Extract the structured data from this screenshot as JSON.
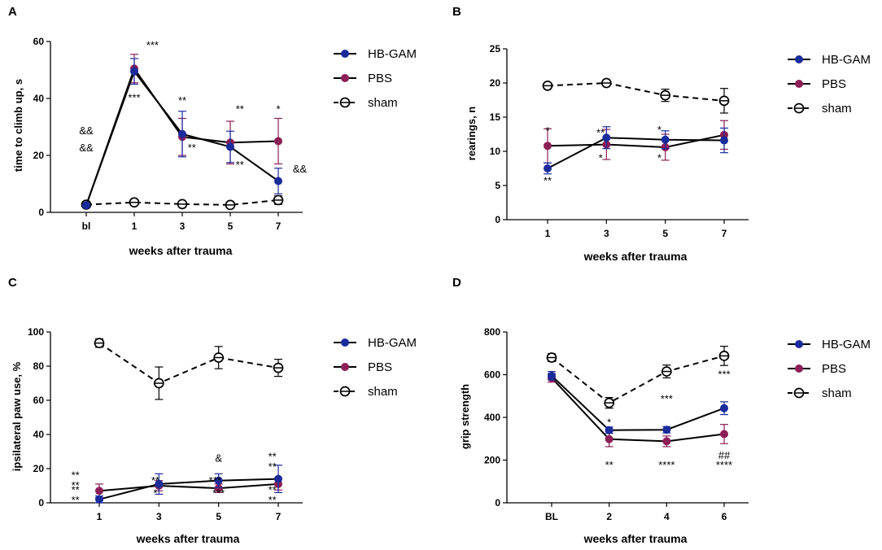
{
  "colors": {
    "hbgam": "#1a2b9c",
    "pbs": "#8b1f57",
    "sham": "#000000"
  },
  "chart_data": [
    {
      "panel": "A",
      "type": "line",
      "ylabel": "time to climb up, s",
      "xlabel": "weeks after trauma",
      "categories": [
        "bl",
        "1",
        "3",
        "5",
        "7"
      ],
      "ylim": [
        0,
        60
      ],
      "yticks": [
        0,
        20,
        40,
        60
      ],
      "legend": [
        "HB-GAM",
        "PBS",
        "sham"
      ],
      "legend_position": "right",
      "series": [
        {
          "name": "HB-GAM",
          "values": [
            2.5,
            49.5,
            27.5,
            23,
            11
          ],
          "errors": [
            0.3,
            4.5,
            8,
            5.5,
            4.5
          ]
        },
        {
          "name": "PBS",
          "values": [
            2.5,
            50.5,
            26.5,
            24.5,
            25
          ],
          "errors": [
            0.3,
            5,
            6.5,
            7.5,
            8
          ]
        },
        {
          "name": "sham",
          "values": [
            2.7,
            3.5,
            2.9,
            2.6,
            4.3
          ],
          "errors": [
            0.2,
            0.5,
            0.3,
            0.3,
            1.5
          ]
        }
      ],
      "annotations": [
        {
          "text": "&&",
          "x": 0,
          "y": 27.5
        },
        {
          "text": "&&",
          "x": 0,
          "y": 21.5
        },
        {
          "text": "***",
          "x": 1.38,
          "y": 57.5
        },
        {
          "text": "***",
          "x": 1,
          "y": 39
        },
        {
          "text": "**",
          "x": 2,
          "y": 38
        },
        {
          "text": "**",
          "x": 2.2,
          "y": 21.5
        },
        {
          "text": "**",
          "x": 3.2,
          "y": 35
        },
        {
          "text": "**",
          "x": 3.2,
          "y": 15.5
        },
        {
          "text": "*",
          "x": 4,
          "y": 35
        },
        {
          "text": "&&",
          "x": 4.45,
          "y": 14
        }
      ]
    },
    {
      "panel": "B",
      "type": "line",
      "ylabel": "rearings, n",
      "xlabel": "weeks after trauma",
      "categories": [
        "1",
        "3",
        "5",
        "7"
      ],
      "ylim": [
        0,
        25
      ],
      "yticks": [
        0,
        5,
        10,
        15,
        20,
        25
      ],
      "legend": [
        "HB-GAM",
        "PBS",
        "sham"
      ],
      "legend_position": "right",
      "series": [
        {
          "name": "HB-GAM",
          "values": [
            7.5,
            12,
            11.7,
            11.6
          ],
          "errors": [
            0.8,
            1.6,
            1.3,
            1.8
          ]
        },
        {
          "name": "PBS",
          "values": [
            10.8,
            11,
            10.6,
            12.4
          ],
          "errors": [
            2.5,
            2.2,
            1.9,
            2.1
          ]
        },
        {
          "name": "sham",
          "values": [
            19.6,
            20,
            18.2,
            17.4
          ],
          "errors": [
            0.2,
            0.2,
            0.9,
            1.8
          ]
        }
      ],
      "annotations": [
        {
          "text": "*",
          "x": 0,
          "y": 12.5
        },
        {
          "text": "**",
          "x": 0,
          "y": 5.2
        },
        {
          "text": "**",
          "x": 0.9,
          "y": 12.2
        },
        {
          "text": "*",
          "x": 0.9,
          "y": 8.5
        },
        {
          "text": "*",
          "x": 1.9,
          "y": 12.6
        },
        {
          "text": "*",
          "x": 1.9,
          "y": 8.5
        }
      ]
    },
    {
      "panel": "C",
      "type": "line",
      "ylabel": "ipsilateral paw use, %",
      "xlabel": "weeks after trauma",
      "categories": [
        "1",
        "3",
        "5",
        "7"
      ],
      "ylim": [
        0,
        100
      ],
      "yticks": [
        0,
        20,
        40,
        60,
        80,
        100
      ],
      "legend": [
        "HB-GAM",
        "PBS",
        "sham"
      ],
      "legend_position": "right",
      "series": [
        {
          "name": "HB-GAM",
          "values": [
            2,
            11,
            13,
            14
          ],
          "errors": [
            2,
            6,
            4,
            8
          ]
        },
        {
          "name": "PBS",
          "values": [
            7,
            10,
            8.5,
            11
          ],
          "errors": [
            4,
            3,
            2.5,
            3.5
          ]
        },
        {
          "name": "sham",
          "values": [
            93.5,
            70,
            85,
            79
          ],
          "errors": [
            2.5,
            9.5,
            6.5,
            5
          ]
        }
      ],
      "annotations": [
        {
          "text": "**",
          "x": -0.4,
          "y": 14
        },
        {
          "text": "**",
          "x": -0.4,
          "y": 8
        },
        {
          "text": "**",
          "x": -0.4,
          "y": 5.5
        },
        {
          "text": "**",
          "x": -0.4,
          "y": -0.5
        },
        {
          "text": "**",
          "x": 0.94,
          "y": 11
        },
        {
          "text": "*",
          "x": 0.94,
          "y": 3.5
        },
        {
          "text": "&",
          "x": 2,
          "y": 24
        },
        {
          "text": "***",
          "x": 1.94,
          "y": 11
        },
        {
          "text": "***",
          "x": 2,
          "y": 3.5
        },
        {
          "text": "**",
          "x": 2.9,
          "y": 25
        },
        {
          "text": "**",
          "x": 2.9,
          "y": 19
        },
        {
          "text": "**",
          "x": 2.9,
          "y": 5.5
        },
        {
          "text": "**",
          "x": 2.9,
          "y": -0.5
        }
      ]
    },
    {
      "panel": "D",
      "type": "line",
      "ylabel": "grip strength",
      "xlabel": "weeks after trauma",
      "categories": [
        "BL",
        "2",
        "4",
        "6"
      ],
      "ylim": [
        0,
        800
      ],
      "yticks": [
        0,
        200,
        400,
        600,
        800
      ],
      "legend": [
        "HB-GAM",
        "PBS",
        "sham"
      ],
      "legend_position": "right",
      "series": [
        {
          "name": "HB-GAM",
          "values": [
            595,
            340,
            342,
            443
          ],
          "errors": [
            20,
            15,
            15,
            30
          ]
        },
        {
          "name": "PBS",
          "values": [
            585,
            298,
            288,
            322
          ],
          "errors": [
            20,
            35,
            25,
            45
          ]
        },
        {
          "name": "sham",
          "values": [
            680,
            468,
            615,
            688
          ],
          "errors": [
            18,
            25,
            30,
            45
          ]
        }
      ],
      "annotations": [
        {
          "text": "*",
          "x": 1,
          "y": 360
        },
        {
          "text": "**",
          "x": 1,
          "y": 160
        },
        {
          "text": "***",
          "x": 2,
          "y": 470
        },
        {
          "text": "****",
          "x": 2,
          "y": 160
        },
        {
          "text": "***",
          "x": 3,
          "y": 585
        },
        {
          "text": "##",
          "x": 3,
          "y": 205
        },
        {
          "text": "****",
          "x": 3,
          "y": 160
        }
      ]
    }
  ]
}
